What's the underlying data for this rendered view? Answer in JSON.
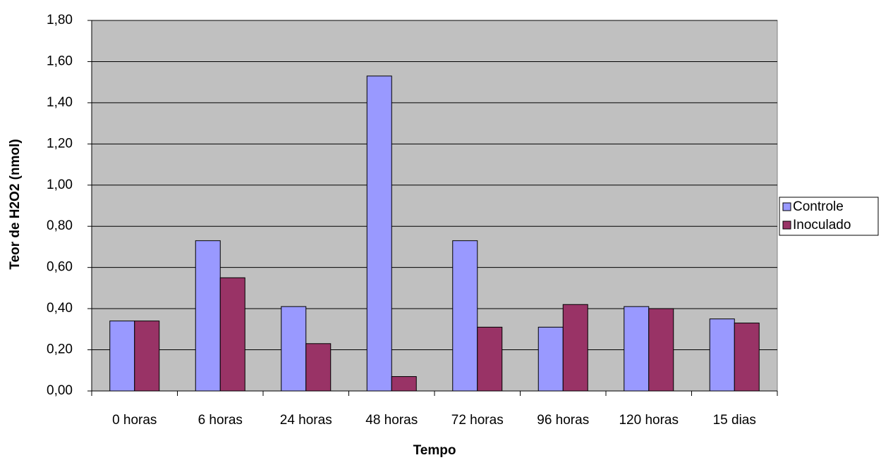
{
  "chart_data": {
    "type": "bar",
    "x_label": "Tempo",
    "y_label": "Teor de H2O2 (nmol)",
    "categories": [
      "0 horas",
      "6 horas",
      "24 horas",
      "48 horas",
      "72 horas",
      "96 horas",
      "120 horas",
      "15 dias"
    ],
    "series": [
      {
        "name": "Controle",
        "color": "#9999ff",
        "values": [
          0.34,
          0.73,
          0.41,
          1.53,
          0.73,
          0.31,
          0.41,
          0.35
        ]
      },
      {
        "name": "Inoculado",
        "color": "#993366",
        "values": [
          0.34,
          0.55,
          0.23,
          0.07,
          0.31,
          0.42,
          0.4,
          0.33
        ]
      }
    ],
    "ylim": [
      0,
      1.8
    ],
    "yticks": [
      {
        "value": 0,
        "label": "0,00"
      },
      {
        "value": 0.2,
        "label": "0,20"
      },
      {
        "value": 0.4,
        "label": "0,40"
      },
      {
        "value": 0.6,
        "label": "0,60"
      },
      {
        "value": 0.8,
        "label": "0,80"
      },
      {
        "value": 1.0,
        "label": "1,00"
      },
      {
        "value": 1.2,
        "label": "1,20"
      },
      {
        "value": 1.4,
        "label": "1,40"
      },
      {
        "value": 1.6,
        "label": "1,60"
      },
      {
        "value": 1.8,
        "label": "1,80"
      }
    ],
    "grid": true,
    "legend": "right"
  }
}
